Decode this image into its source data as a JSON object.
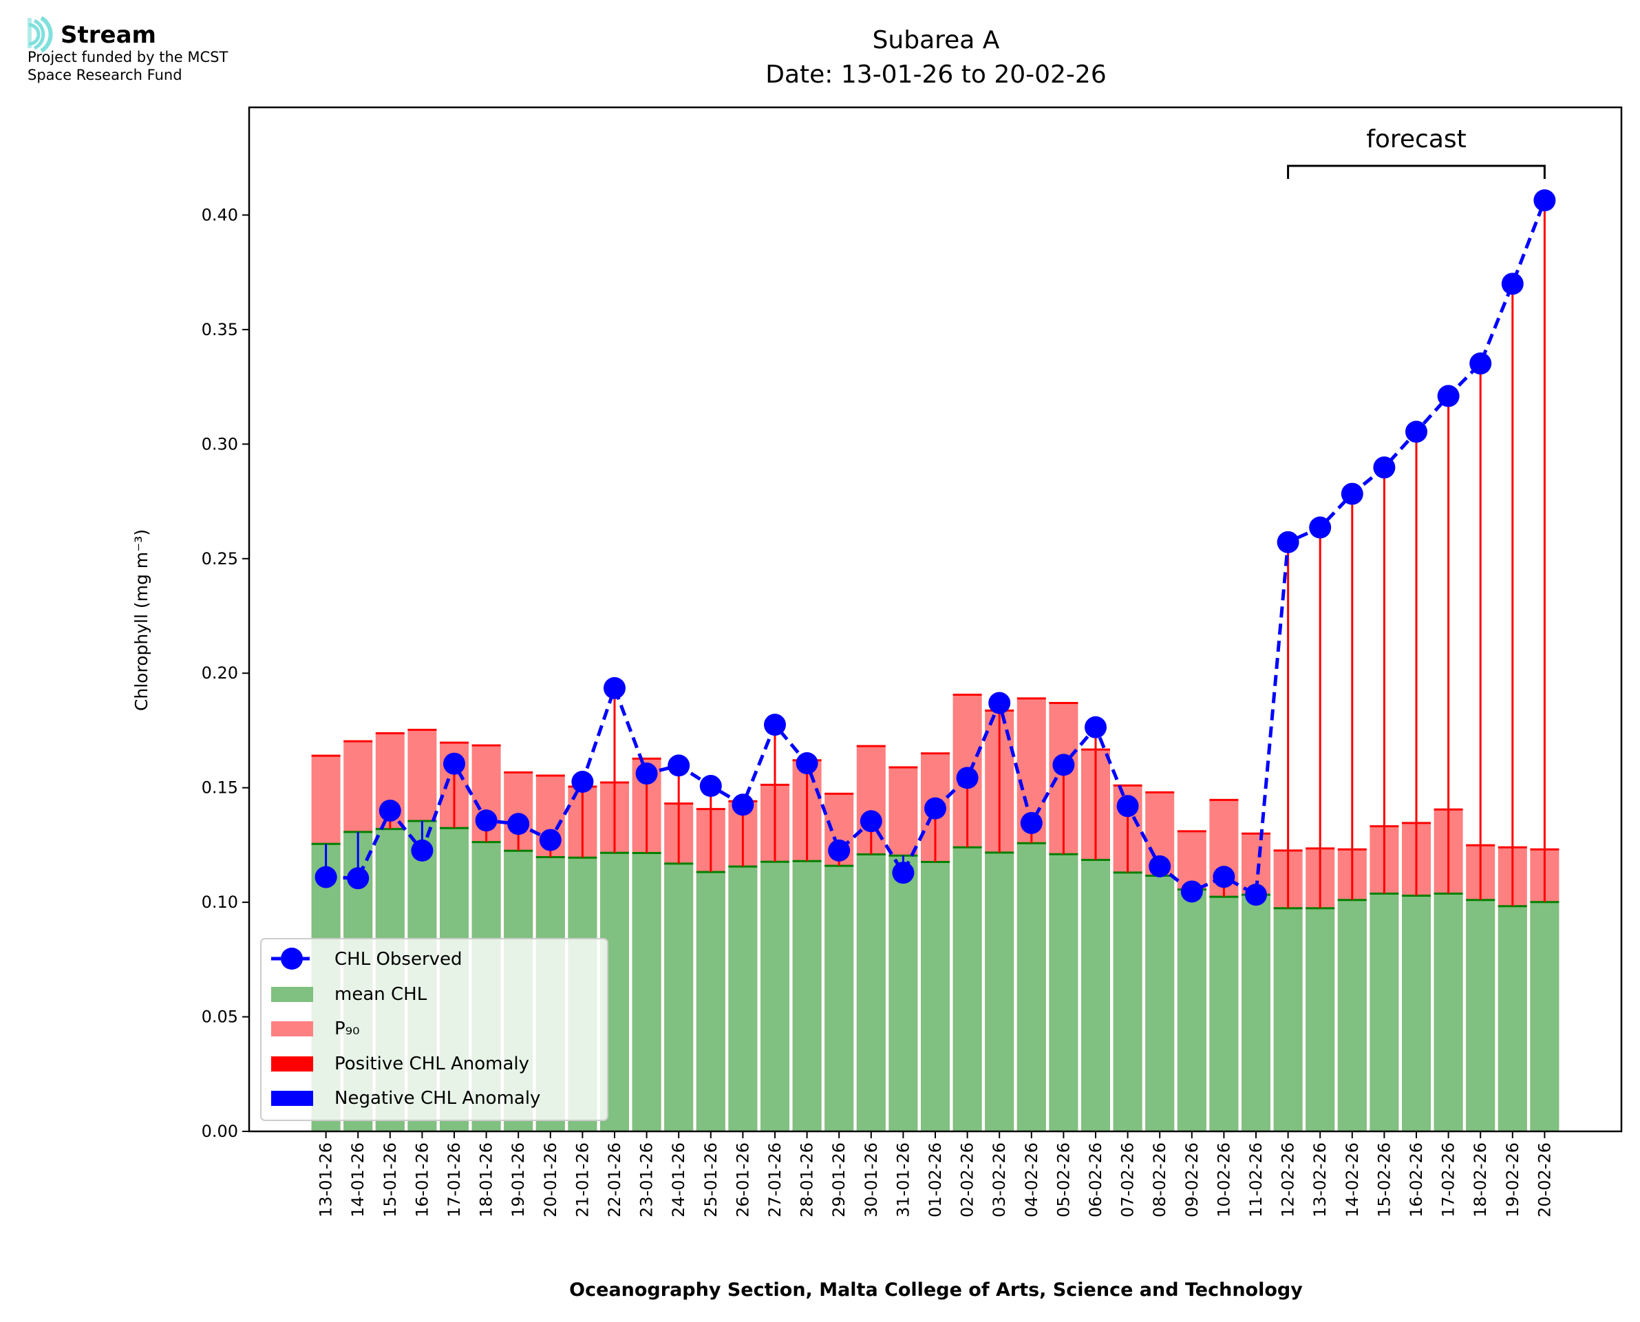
{
  "logo": {
    "name": "Stream",
    "line1": "Project funded by the MCST",
    "line2": "Space Research Fund",
    "color": "#7fe0dc"
  },
  "chart_data": {
    "type": "bar",
    "title": "Subarea A",
    "subtitle": "Date: 13-01-26 to 20-02-26",
    "xlabel": "Oceanography Section, Malta College of Arts, Science and Technology",
    "ylabel": "Chlorophyll (mg m⁻³)",
    "ylim": [
      0,
      0.447
    ],
    "yticks": [
      "0.00",
      "0.05",
      "0.10",
      "0.15",
      "0.20",
      "0.25",
      "0.30",
      "0.35",
      "0.40"
    ],
    "annotation": "forecast",
    "forecast_range": [
      "12-02-26",
      "20-02-26"
    ],
    "legend_position": "lower-left",
    "legend": [
      "CHL Observed",
      "mean CHL",
      "P₉₀",
      "Positive CHL Anomaly",
      "Negative CHL Anomaly"
    ],
    "colors": {
      "observed": "#0000ff",
      "mean": "#80c080",
      "mean_edge": "#008000",
      "p90": "#ff8080",
      "p90_edge": "#ff0000",
      "pos": "#ff0000",
      "neg": "#0000ff"
    },
    "categories": [
      "13-01-26",
      "14-01-26",
      "15-01-26",
      "16-01-26",
      "17-01-26",
      "18-01-26",
      "19-01-26",
      "20-01-26",
      "21-01-26",
      "22-01-26",
      "23-01-26",
      "24-01-26",
      "25-01-26",
      "26-01-26",
      "27-01-26",
      "28-01-26",
      "29-01-26",
      "30-01-26",
      "31-01-26",
      "01-02-26",
      "02-02-26",
      "03-02-26",
      "04-02-26",
      "05-02-26",
      "06-02-26",
      "07-02-26",
      "08-02-26",
      "09-02-26",
      "10-02-26",
      "11-02-26",
      "12-02-26",
      "13-02-26",
      "14-02-26",
      "15-02-26",
      "16-02-26",
      "17-02-26",
      "18-02-26",
      "19-02-26",
      "20-02-26"
    ],
    "series": [
      {
        "name": "mean CHL",
        "values": [
          0.1255,
          0.1307,
          0.132,
          0.1355,
          0.1324,
          0.1263,
          0.1225,
          0.1197,
          0.1195,
          0.1216,
          0.1215,
          0.1169,
          0.1132,
          0.1156,
          0.1177,
          0.118,
          0.1159,
          0.1209,
          0.1204,
          0.1176,
          0.124,
          0.1217,
          0.1258,
          0.121,
          0.1185,
          0.113,
          0.1116,
          0.1056,
          0.1024,
          0.1033,
          0.0974,
          0.0974,
          0.101,
          0.1038,
          0.1029,
          0.1038,
          0.101,
          0.0983,
          0.1001
        ]
      },
      {
        "name": "P90",
        "values": [
          0.164,
          0.1703,
          0.1738,
          0.1753,
          0.1697,
          0.1685,
          0.1567,
          0.1553,
          0.1505,
          0.1523,
          0.1627,
          0.1431,
          0.1407,
          0.1441,
          0.1513,
          0.162,
          0.1474,
          0.1682,
          0.1589,
          0.165,
          0.1906,
          0.1837,
          0.189,
          0.187,
          0.1667,
          0.151,
          0.148,
          0.131,
          0.1447,
          0.13,
          0.1226,
          0.1235,
          0.1231,
          0.1332,
          0.1346,
          0.1405,
          0.1249,
          0.124,
          0.1231
        ]
      },
      {
        "name": "CHL Observed",
        "values": [
          0.111,
          0.1105,
          0.14,
          0.1226,
          0.1605,
          0.1357,
          0.1342,
          0.1272,
          0.1526,
          0.1935,
          0.1562,
          0.1597,
          0.1508,
          0.1426,
          0.1775,
          0.1607,
          0.1226,
          0.1354,
          0.1129,
          0.141,
          0.1543,
          0.187,
          0.1346,
          0.16,
          0.1764,
          0.142,
          0.1157,
          0.1047,
          0.1111,
          0.1033,
          0.2572,
          0.2636,
          0.2783,
          0.2898,
          0.3054,
          0.321,
          0.3352,
          0.37,
          0.4064
        ]
      }
    ]
  }
}
